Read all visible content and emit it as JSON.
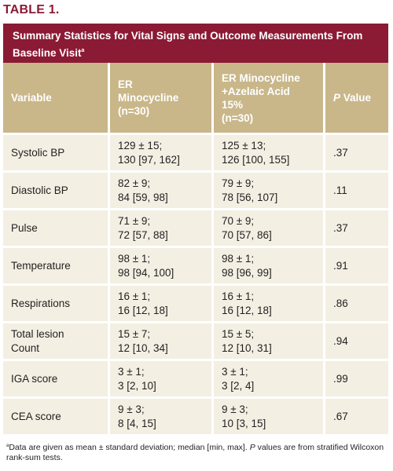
{
  "table_label": "TABLE 1.",
  "title": "Summary Statistics for Vital Signs and Outcome Measurements From Baseline Visit",
  "title_mark": "a",
  "columns": {
    "variable": "Variable",
    "col1": [
      "ER",
      "Minocycline",
      "(n=30)"
    ],
    "col2": [
      "ER Minocycline",
      "+Azelaic Acid",
      "15%",
      "(n=30)"
    ],
    "p_italic": "P",
    "p_rest": " Value"
  },
  "rows": [
    {
      "variable": "Systolic BP",
      "mino": [
        "129 ± 15;",
        "130 [97, 162]"
      ],
      "combo": [
        "125 ± 13;",
        "126 [100, 155]"
      ],
      "p": ".37"
    },
    {
      "variable": "Diastolic BP",
      "mino": [
        "82 ± 9;",
        "84 [59, 98]"
      ],
      "combo": [
        "79 ± 9;",
        "78 [56, 107]"
      ],
      "p": ".11"
    },
    {
      "variable": "Pulse",
      "mino": [
        "71 ± 9;",
        "72 [57, 88]"
      ],
      "combo": [
        "70 ± 9;",
        "70 [57, 86]"
      ],
      "p": ".37"
    },
    {
      "variable": "Temperature",
      "mino": [
        "98 ± 1;",
        "98 [94, 100]"
      ],
      "combo": [
        "98 ± 1;",
        "98 [96, 99]"
      ],
      "p": ".91"
    },
    {
      "variable": "Respirations",
      "mino": [
        "16 ± 1;",
        "16 [12, 18]"
      ],
      "combo": [
        "16 ± 1;",
        "16 [12, 18]"
      ],
      "p": ".86"
    },
    {
      "variable": [
        "Total lesion",
        "Count"
      ],
      "mino": [
        "15 ± 7;",
        "12 [10, 34]"
      ],
      "combo": [
        "15 ± 5;",
        "12 [10, 31]"
      ],
      "p": ".94"
    },
    {
      "variable": "IGA score",
      "mino": [
        "3 ± 1;",
        "3 [2, 10]"
      ],
      "combo": [
        "3 ± 1;",
        "3 [2, 4]"
      ],
      "p": ".99"
    },
    {
      "variable": "CEA score",
      "mino": [
        "9 ± 3;",
        "8 [4, 15]"
      ],
      "combo": [
        "9 ± 3;",
        "10 [3, 15]"
      ],
      "p": ".67"
    }
  ],
  "footnote": {
    "mark": "a",
    "line1": "Data are given as mean ± standard deviation; median [min, max]. ",
    "p_italic": "P",
    "line2": " values are from stratified Wilcoxon rank-sum tests."
  }
}
